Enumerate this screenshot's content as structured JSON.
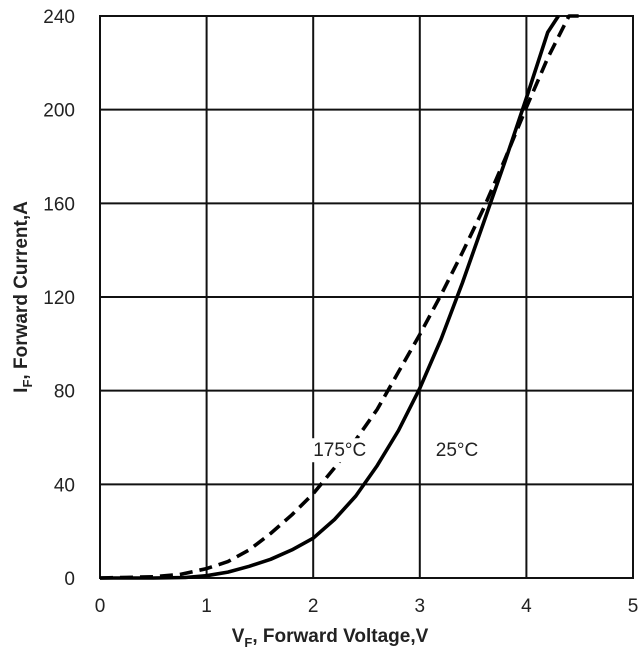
{
  "chart_data": {
    "type": "line",
    "title": "",
    "xlabel_main": "V",
    "xlabel_sub": "F",
    "xlabel_rest": ", Forward Voltage,V",
    "ylabel_main": "I",
    "ylabel_sub": "F",
    "ylabel_rest": ", Forward Current,A",
    "xlim": [
      0,
      5
    ],
    "ylim": [
      0,
      240
    ],
    "xticks": [
      "0",
      "1",
      "2",
      "3",
      "4",
      "5"
    ],
    "yticks": [
      "0",
      "40",
      "80",
      "120",
      "160",
      "200",
      "240"
    ],
    "grid": true,
    "series": [
      {
        "name": "25°C",
        "style": "solid",
        "x": [
          0,
          0.5,
          0.8,
          1.0,
          1.2,
          1.4,
          1.6,
          1.8,
          2.0,
          2.2,
          2.4,
          2.6,
          2.8,
          3.0,
          3.2,
          3.4,
          3.6,
          3.8,
          4.0,
          4.2,
          4.3
        ],
        "y": [
          0,
          0,
          0.2,
          1,
          2.5,
          5,
          8,
          12,
          17,
          25,
          35,
          48,
          63,
          81,
          102,
          126,
          152,
          178,
          205,
          233,
          240
        ]
      },
      {
        "name": "175°C",
        "style": "dashed",
        "x": [
          0,
          0.5,
          0.75,
          1.0,
          1.2,
          1.4,
          1.6,
          1.8,
          2.0,
          2.2,
          2.4,
          2.6,
          2.8,
          3.0,
          3.2,
          3.4,
          3.6,
          3.8,
          4.0,
          4.2,
          4.4,
          4.5
        ],
        "y": [
          0,
          0.5,
          1.5,
          4,
          7,
          12,
          19,
          27,
          36,
          47,
          59,
          72,
          88,
          104,
          121,
          139,
          158,
          179,
          201,
          222,
          240,
          240
        ]
      }
    ],
    "annotations": [
      {
        "text": "175°C",
        "x": 2.0,
        "y": 52
      },
      {
        "text": "25°C",
        "x": 3.15,
        "y": 52
      }
    ]
  }
}
